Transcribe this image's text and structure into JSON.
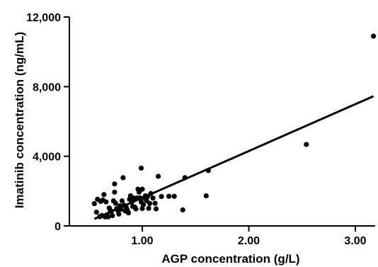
{
  "chart_data": {
    "type": "scatter",
    "title": "",
    "xlabel": "AGP concentration (g/L)",
    "ylabel": "Imatinib concentration (ng/mL)",
    "xlim": [
      0.45,
      3.2
    ],
    "ylim": [
      0,
      12000
    ],
    "x_ticks": [
      {
        "value": 1.0,
        "label": "1.00"
      },
      {
        "value": 2.0,
        "label": "2.00"
      },
      {
        "value": 3.0,
        "label": "3.00"
      }
    ],
    "y_ticks": [
      {
        "value": 0,
        "label": "0"
      },
      {
        "value": 4000,
        "label": "4,000"
      },
      {
        "value": 8000,
        "label": "8,000"
      },
      {
        "value": 12000,
        "label": "12,000"
      }
    ],
    "grid": false,
    "legend": "none",
    "series": [
      {
        "points": [
          [
            0.55,
            1280
          ],
          [
            0.57,
            790
          ],
          [
            0.58,
            1530
          ],
          [
            0.6,
            530
          ],
          [
            0.61,
            1410
          ],
          [
            0.62,
            600
          ],
          [
            0.63,
            1490
          ],
          [
            0.64,
            1800
          ],
          [
            0.65,
            520
          ],
          [
            0.66,
            1380
          ],
          [
            0.67,
            610
          ],
          [
            0.68,
            520
          ],
          [
            0.69,
            1030
          ],
          [
            0.7,
            830
          ],
          [
            0.71,
            850
          ],
          [
            0.72,
            590
          ],
          [
            0.73,
            1440
          ],
          [
            0.74,
            2410
          ],
          [
            0.74,
            1940
          ],
          [
            0.75,
            1300
          ],
          [
            0.76,
            1000
          ],
          [
            0.77,
            890
          ],
          [
            0.78,
            680
          ],
          [
            0.79,
            1150
          ],
          [
            0.8,
            960
          ],
          [
            0.81,
            1440
          ],
          [
            0.82,
            2770
          ],
          [
            0.83,
            1190
          ],
          [
            0.84,
            860
          ],
          [
            0.85,
            1060
          ],
          [
            0.86,
            920
          ],
          [
            0.87,
            750
          ],
          [
            0.88,
            1530
          ],
          [
            0.89,
            1730
          ],
          [
            0.9,
            1370
          ],
          [
            0.91,
            1120
          ],
          [
            0.92,
            1600
          ],
          [
            0.93,
            1080
          ],
          [
            0.94,
            980
          ],
          [
            0.95,
            1610
          ],
          [
            0.96,
            2110
          ],
          [
            0.97,
            1940
          ],
          [
            0.98,
            1610
          ],
          [
            0.99,
            3320
          ],
          [
            0.99,
            1370
          ],
          [
            1.0,
            2110
          ],
          [
            1.0,
            1000
          ],
          [
            1.01,
            1220
          ],
          [
            1.02,
            1610
          ],
          [
            1.03,
            1730
          ],
          [
            1.04,
            1450
          ],
          [
            1.05,
            1690
          ],
          [
            1.06,
            1010
          ],
          [
            1.07,
            1290
          ],
          [
            1.08,
            1860
          ],
          [
            1.1,
            1600
          ],
          [
            1.12,
            1300
          ],
          [
            1.13,
            980
          ],
          [
            1.15,
            2850
          ],
          [
            1.18,
            1690
          ],
          [
            1.25,
            1700
          ],
          [
            1.3,
            1700
          ],
          [
            1.38,
            920
          ],
          [
            1.4,
            2770
          ],
          [
            1.6,
            1730
          ],
          [
            1.62,
            3180
          ],
          [
            2.54,
            4680
          ],
          [
            3.17,
            10900
          ]
        ]
      }
    ],
    "trendline": {
      "x": [
        0.55,
        3.17
      ],
      "y": [
        400,
        7450
      ]
    }
  }
}
